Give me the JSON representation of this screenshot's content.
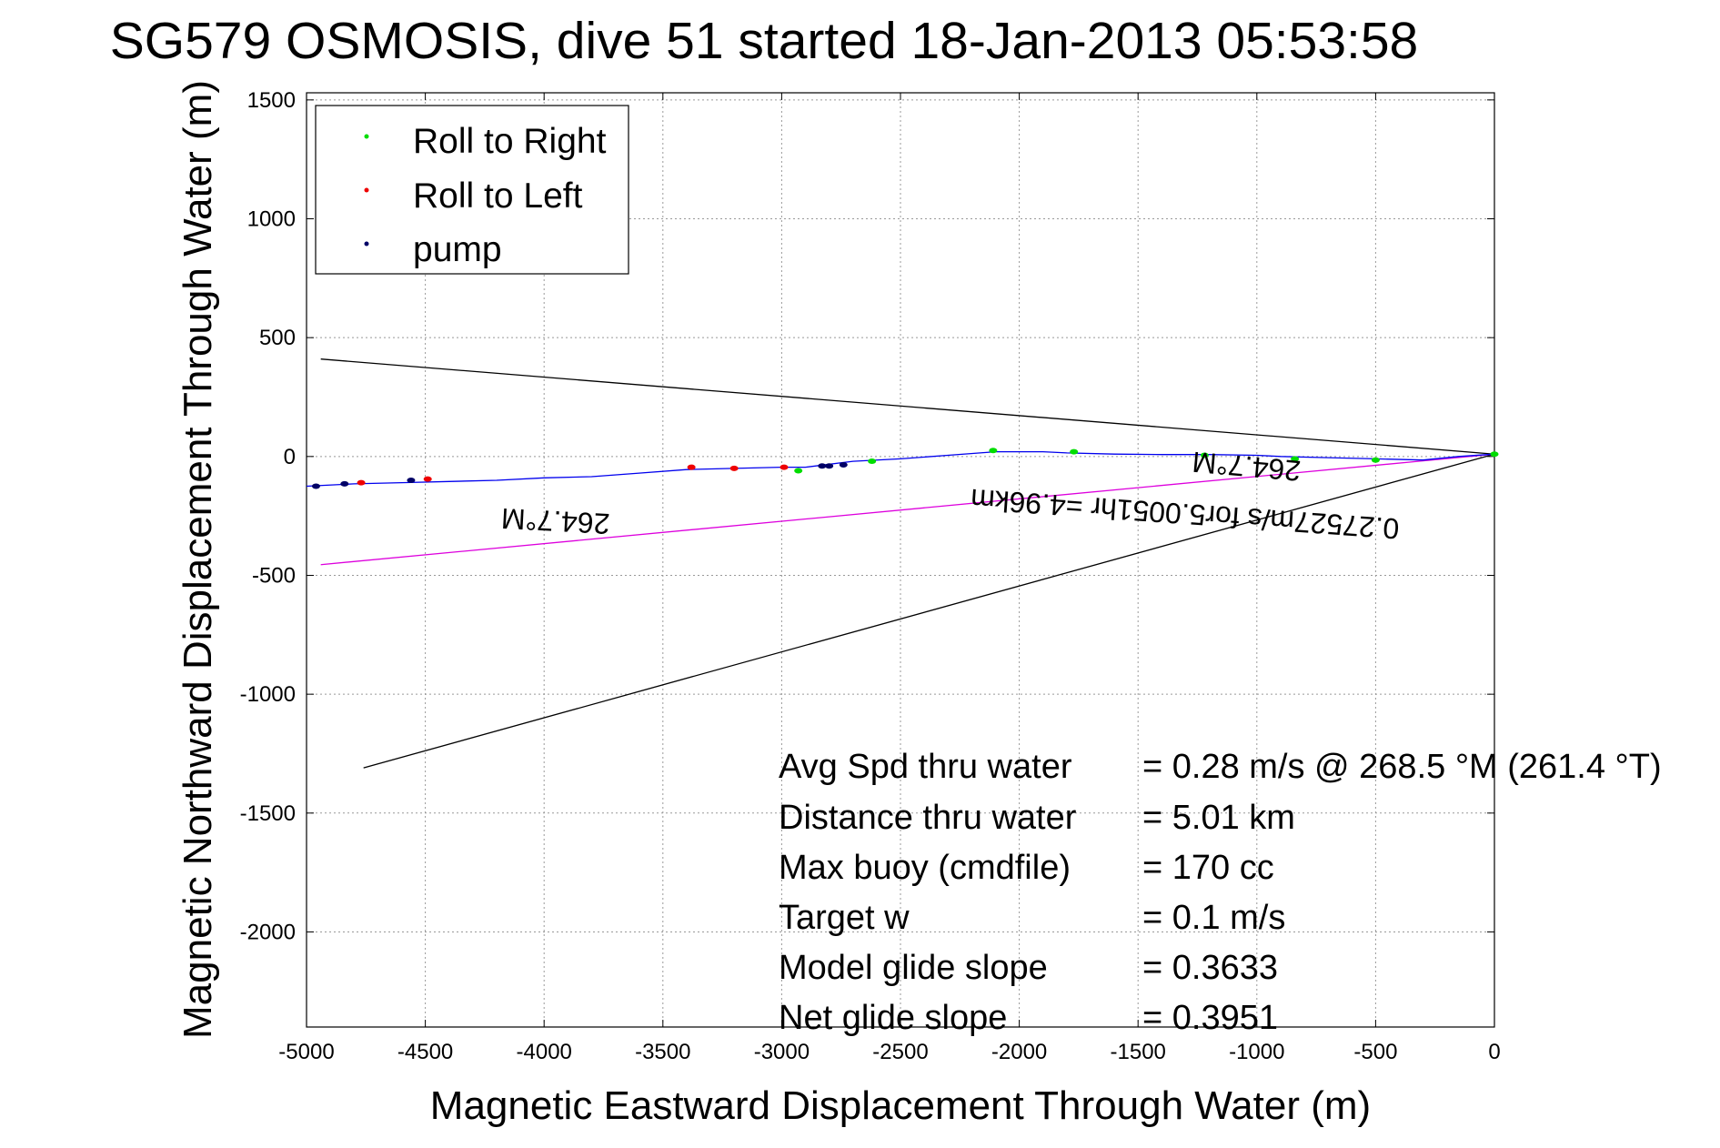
{
  "chart_data": {
    "type": "line",
    "title": "SG579 OSMOSIS, dive 51 started 18-Jan-2013 05:53:58",
    "xlabel": "Magnetic Eastward Displacement Through Water (m)",
    "ylabel": "Magnetic Northward Displacement Through Water (m)",
    "xlim": [
      -5000,
      0
    ],
    "ylim": [
      -2400,
      1530
    ],
    "x_ticks": [
      -5000,
      -4500,
      -4000,
      -3500,
      -3000,
      -2500,
      -2000,
      -1500,
      -1000,
      -500,
      0
    ],
    "y_ticks": [
      1500,
      1000,
      500,
      0,
      -500,
      -1000,
      -1500,
      -2000
    ],
    "x_tick_labels": [
      "-5000",
      "-4500",
      "-4000",
      "-3500",
      "-3000",
      "-2500",
      "-2000",
      "-1500",
      "-1000",
      "-500",
      "0"
    ],
    "y_tick_labels": [
      "1500",
      "1000",
      "500",
      "0",
      "-500",
      "-1000",
      "-1500",
      "-2000"
    ],
    "grid": true,
    "legend_position": "top-left",
    "legend": [
      {
        "label": "Roll to Right",
        "color": "#00dd00"
      },
      {
        "label": "Roll to Left",
        "color": "#ee0000"
      },
      {
        "label": "pump",
        "color": "#000066"
      }
    ],
    "series": [
      {
        "name": "track",
        "color": "#0000ee",
        "x": [
          0,
          -150,
          -300,
          -500,
          -700,
          -900,
          -1000,
          -1200,
          -1400,
          -1600,
          -1800,
          -1900,
          -2100,
          -2300,
          -2500,
          -2700,
          -2900,
          -3000,
          -3200,
          -3400,
          -3600,
          -3800,
          -4000,
          -4200,
          -4400,
          -4600,
          -4800,
          -5000
        ],
        "y": [
          10,
          0,
          -15,
          -10,
          -5,
          0,
          5,
          8,
          8,
          10,
          15,
          20,
          20,
          5,
          -10,
          -20,
          -45,
          -45,
          -50,
          -55,
          -70,
          -85,
          -90,
          -100,
          -105,
          -110,
          -115,
          -125
        ]
      },
      {
        "name": "Roll to Right",
        "color": "#00dd00",
        "x": [
          0,
          -500,
          -840,
          -1220,
          -1770,
          -2110,
          -2620,
          -2930
        ],
        "y": [
          10,
          -15,
          -10,
          5,
          20,
          25,
          -20,
          -60
        ]
      },
      {
        "name": "Roll to Left",
        "color": "#ee0000",
        "x": [
          -2990,
          -3200,
          -3380,
          -4490,
          -4770
        ],
        "y": [
          -45,
          -50,
          -45,
          -95,
          -110
        ]
      },
      {
        "name": "pump",
        "color": "#000066",
        "x": [
          -2740,
          -2800,
          -2830,
          -4560,
          -4840,
          -4960
        ],
        "y": [
          -35,
          -40,
          -40,
          -100,
          -115,
          -125
        ]
      }
    ],
    "reference_lines": [
      {
        "color": "#000000",
        "x": [
          0,
          -4940
        ],
        "y": [
          10,
          410
        ]
      },
      {
        "color": "#000000",
        "x": [
          0,
          -4760
        ],
        "y": [
          10,
          -1310
        ]
      },
      {
        "color": "#dd00dd",
        "x": [
          0,
          -4940
        ],
        "y": [
          10,
          -455
        ]
      }
    ],
    "annotations": [
      {
        "text": "264.7°M",
        "x": -3950,
        "y": -230,
        "rotation": 183
      },
      {
        "text": "0.27527m/s for5.0051hr =4.96km",
        "x": -1300,
        "y": -200,
        "rotation": 184
      },
      {
        "text": "264.7°M",
        "x": -1040,
        "y": 0,
        "rotation": 185
      }
    ],
    "stats": [
      {
        "label": "Avg Spd thru water",
        "value": "=  0.28 m/s @ 268.5 °M (261.4 °T)"
      },
      {
        "label": "Distance thru water",
        "value": "=  5.01 km"
      },
      {
        "label": "Max buoy (cmdfile)",
        "value": "= 170 cc"
      },
      {
        "label": "Target w",
        "value": "= 0.1 m/s"
      },
      {
        "label": "Model glide slope",
        "value": "= 0.3633"
      },
      {
        "label": "Net glide slope",
        "value": "= 0.3951"
      }
    ]
  }
}
